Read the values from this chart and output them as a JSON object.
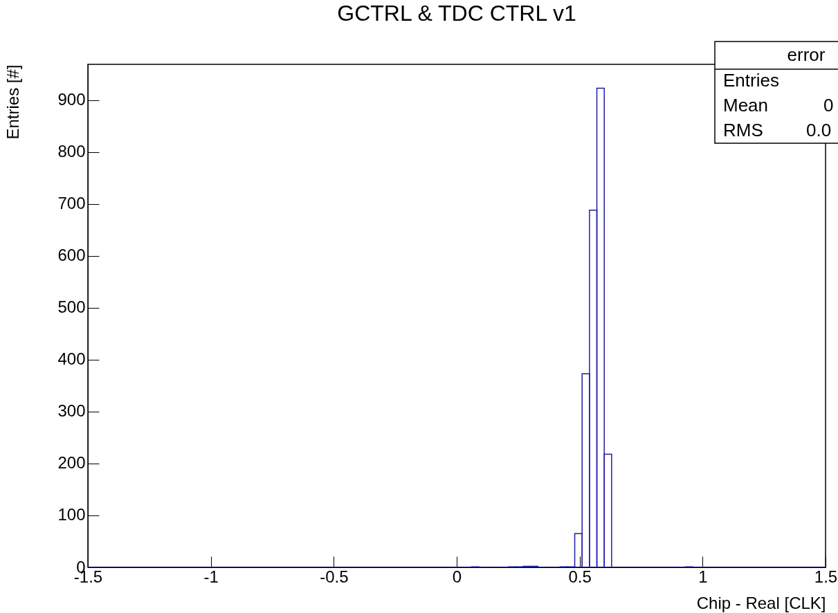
{
  "chart_data": {
    "type": "histogram",
    "title": "GCTRL & TDC CTRL v1",
    "xlabel": "Chip - Real  [CLK]",
    "ylabel": "Entries  [#]",
    "bins": [
      -1.5,
      -1.47,
      -1.44,
      -1.41,
      -1.38,
      -1.35,
      -1.32,
      -1.29,
      -1.26,
      -1.23,
      -1.2,
      -1.17,
      -1.14,
      -1.11,
      -1.08,
      -1.05,
      -1.02,
      -0.99,
      -0.96,
      -0.93,
      -0.9,
      -0.87,
      -0.84,
      -0.81,
      -0.78,
      -0.75,
      -0.72,
      -0.69,
      -0.66,
      -0.63,
      -0.6,
      -0.57,
      -0.54,
      -0.51,
      -0.48,
      -0.45,
      -0.42,
      -0.39,
      -0.36,
      -0.33,
      -0.3,
      -0.27,
      -0.24,
      -0.21,
      -0.18,
      -0.15,
      -0.12,
      -0.09,
      -0.06,
      -0.03,
      0,
      0.03,
      0.06,
      0.09,
      0.12,
      0.15,
      0.18,
      0.21,
      0.24,
      0.27,
      0.3,
      0.33,
      0.36,
      0.39,
      0.42,
      0.45,
      0.48,
      0.51,
      0.54,
      0.57,
      0.6,
      0.63,
      0.66,
      0.69,
      0.72,
      0.75,
      0.78,
      0.81,
      0.84,
      0.87,
      0.9,
      0.93,
      0.96,
      0.99,
      1.02,
      1.05,
      1.08,
      1.11,
      1.14,
      1.17,
      1.2,
      1.23,
      1.26,
      1.29,
      1.32,
      1.35,
      1.38,
      1.41,
      1.44,
      1.47,
      1.5
    ],
    "values": [
      0,
      0,
      0,
      0,
      0,
      0,
      0,
      0,
      0,
      0,
      0,
      0,
      0,
      0,
      0,
      0,
      0,
      0,
      0,
      0,
      0,
      0,
      0,
      0,
      0,
      0,
      0,
      0,
      0,
      0,
      0,
      0,
      0,
      0,
      0,
      0,
      0,
      0,
      0,
      0,
      0,
      0,
      0,
      0,
      0,
      0,
      0,
      0,
      0,
      0,
      0,
      0,
      1,
      0,
      0,
      0,
      0,
      1,
      1,
      2,
      2,
      0,
      0,
      0,
      1,
      1,
      65,
      373,
      688,
      923,
      218,
      0,
      0,
      0,
      0,
      0,
      0,
      0,
      0,
      0,
      0,
      1,
      0,
      0,
      0,
      0,
      0,
      0,
      0,
      0,
      0,
      0,
      0,
      0,
      0,
      0,
      0,
      0,
      0,
      0
    ],
    "color": "#1c1ca8",
    "xlim": [
      -1.5,
      1.5
    ],
    "xticks": [
      -1.5,
      -1,
      -0.5,
      0,
      0.5,
      1,
      1.5
    ],
    "ylim": [
      0,
      969
    ],
    "yticks": [
      0,
      100,
      200,
      300,
      400,
      500,
      600,
      700,
      800,
      900
    ],
    "annotations": [
      "error",
      "Entries",
      "Mean",
      "0",
      "RMS",
      "0.0"
    ]
  }
}
